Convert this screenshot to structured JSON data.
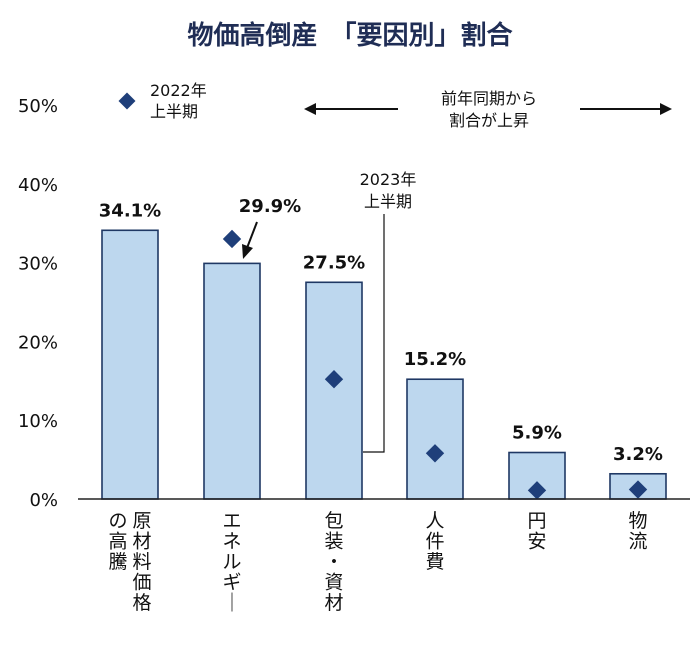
{
  "chart_data": {
    "type": "bar",
    "title": "物価高倒産　「要因別」割合",
    "categories": [
      "原材料価格の高騰",
      "エネルギー",
      "包装・資材",
      "人件費",
      "円安",
      "物流"
    ],
    "series": [
      {
        "name": "2023年上半期",
        "values": [
          34.1,
          29.9,
          27.5,
          15.2,
          5.9,
          3.2
        ],
        "type": "bar"
      },
      {
        "name": "2022年上半期",
        "values": [
          null,
          33.0,
          15.2,
          5.8,
          1.1,
          1.2
        ],
        "type": "marker"
      }
    ],
    "value_labels": [
      "34.1%",
      "29.9%",
      "27.5%",
      "15.2%",
      "5.9%",
      "3.2%"
    ],
    "yticks": [
      "0%",
      "10%",
      "20%",
      "30%",
      "40%",
      "50%"
    ],
    "ylim": [
      0,
      50
    ],
    "legend": {
      "label_line1": "2022年",
      "label_line2": "上半期",
      "position": "top-left"
    },
    "bar_note": {
      "line1": "2023年",
      "line2": "上半期"
    },
    "range_note": {
      "line1": "前年同期から",
      "line2": "割合が上昇"
    },
    "colors": {
      "bar_fill": "#bdd7ee",
      "bar_stroke": "#1f3864",
      "marker": "#1f3f7a",
      "title": "#1f2d55"
    }
  }
}
